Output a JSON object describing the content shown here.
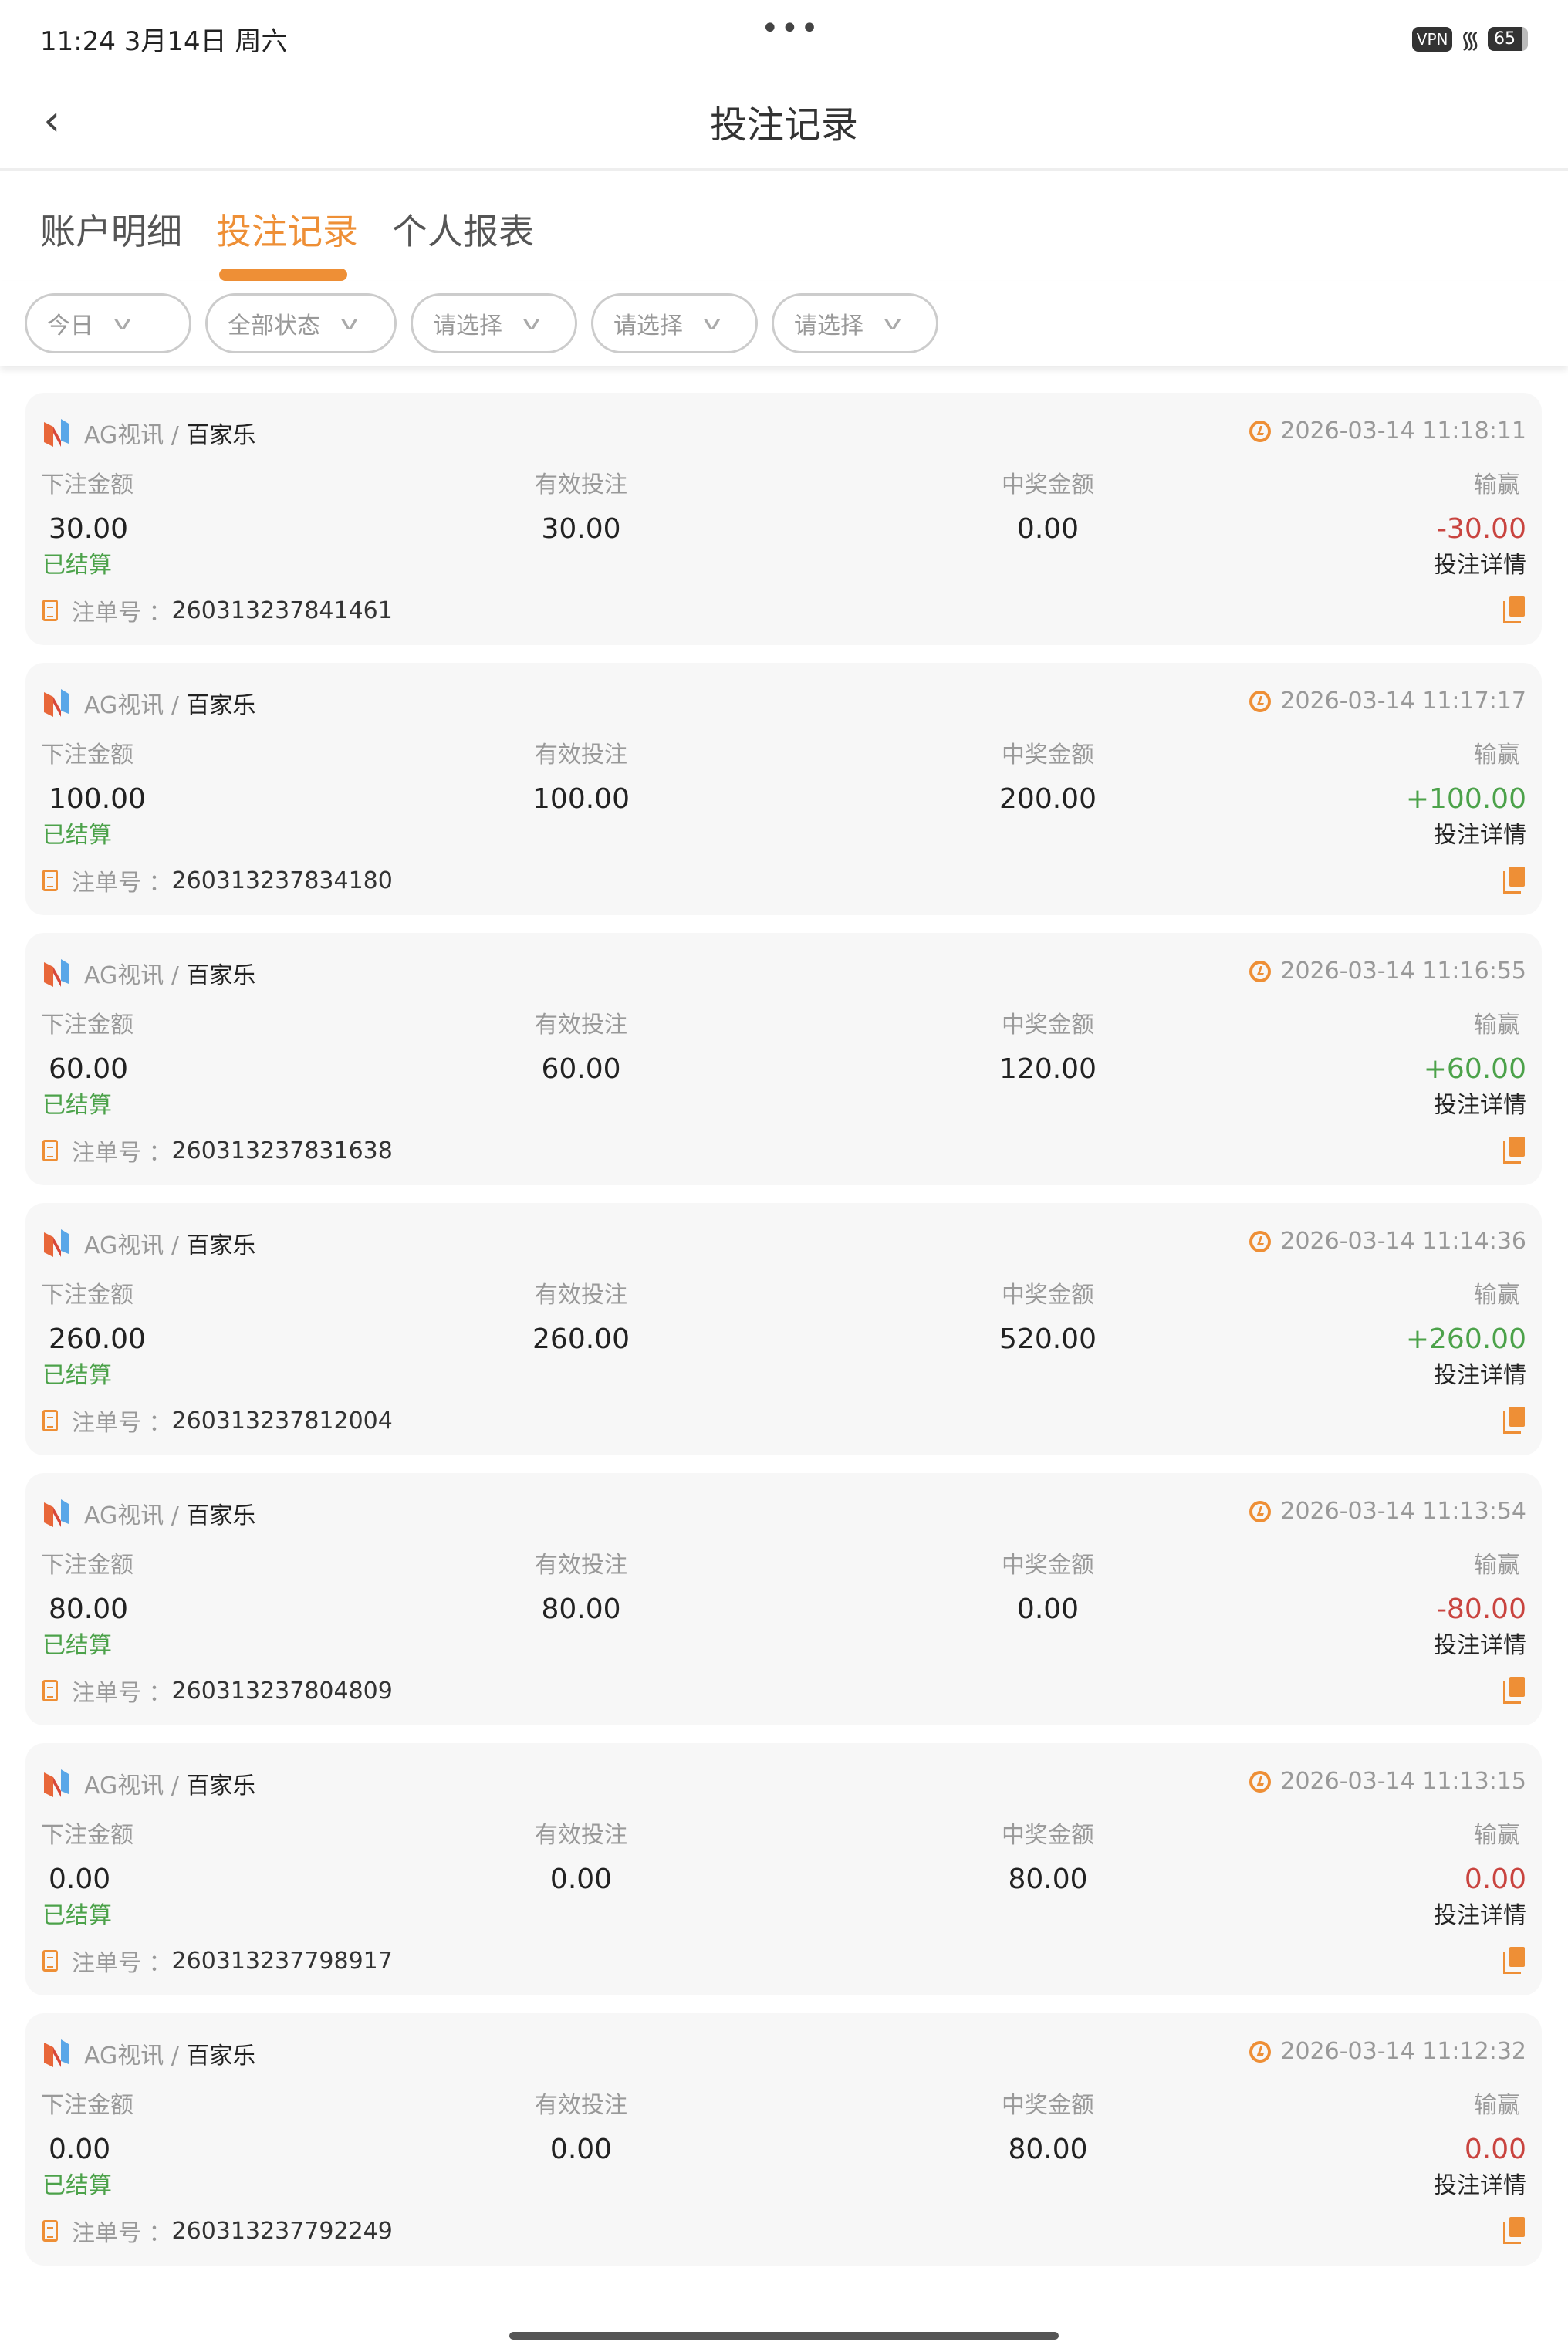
{
  "status_bar": {
    "time": "11:24  3月14日 周六",
    "dots": "•••",
    "vpn": "VPN",
    "battery": "65"
  },
  "header": {
    "title": "投注记录"
  },
  "tabs": [
    {
      "label": "账户明细"
    },
    {
      "label": "投注记录"
    },
    {
      "label": "个人报表"
    }
  ],
  "filters": [
    {
      "label": "今日"
    },
    {
      "label": "全部状态"
    },
    {
      "label": "请选择"
    },
    {
      "label": "请选择"
    },
    {
      "label": "请选择"
    }
  ],
  "labels": {
    "bet_amount": "下注金额",
    "valid_bet": "有效投注",
    "win_amount": "中奖金额",
    "profit": "输赢",
    "detail": "投注详情",
    "order_no": "注单号 ："
  },
  "colors": {
    "accent": "#ee8f36",
    "win": "#4ca24a",
    "loss": "#c9443f"
  },
  "records": [
    {
      "provider": "AG视讯 /",
      "game": "百家乐",
      "time": "2026-03-14 11:18:11",
      "bet": "30.00",
      "valid": "30.00",
      "win": "0.00",
      "profit": "-30.00",
      "profit_type": "neg",
      "status": "已结算",
      "order": "260313237841461"
    },
    {
      "provider": "AG视讯 /",
      "game": "百家乐",
      "time": "2026-03-14 11:17:17",
      "bet": "100.00",
      "valid": "100.00",
      "win": "200.00",
      "profit": "+100.00",
      "profit_type": "pos",
      "status": "已结算",
      "order": "260313237834180"
    },
    {
      "provider": "AG视讯 /",
      "game": "百家乐",
      "time": "2026-03-14 11:16:55",
      "bet": "60.00",
      "valid": "60.00",
      "win": "120.00",
      "profit": "+60.00",
      "profit_type": "pos",
      "status": "已结算",
      "order": "260313237831638"
    },
    {
      "provider": "AG视讯 /",
      "game": "百家乐",
      "time": "2026-03-14 11:14:36",
      "bet": "260.00",
      "valid": "260.00",
      "win": "520.00",
      "profit": "+260.00",
      "profit_type": "pos",
      "status": "已结算",
      "order": "260313237812004"
    },
    {
      "provider": "AG视讯 /",
      "game": "百家乐",
      "time": "2026-03-14 11:13:54",
      "bet": "80.00",
      "valid": "80.00",
      "win": "0.00",
      "profit": "-80.00",
      "profit_type": "neg",
      "status": "已结算",
      "order": "260313237804809"
    },
    {
      "provider": "AG视讯 /",
      "game": "百家乐",
      "time": "2026-03-14 11:13:15",
      "bet": "0.00",
      "valid": "0.00",
      "win": "80.00",
      "profit": "0.00",
      "profit_type": "neg",
      "status": "已结算",
      "order": "260313237798917"
    },
    {
      "provider": "AG视讯 /",
      "game": "百家乐",
      "time": "2026-03-14 11:12:32",
      "bet": "0.00",
      "valid": "0.00",
      "win": "80.00",
      "profit": "0.00",
      "profit_type": "neg",
      "status": "已结算",
      "order": "260313237792249"
    }
  ]
}
